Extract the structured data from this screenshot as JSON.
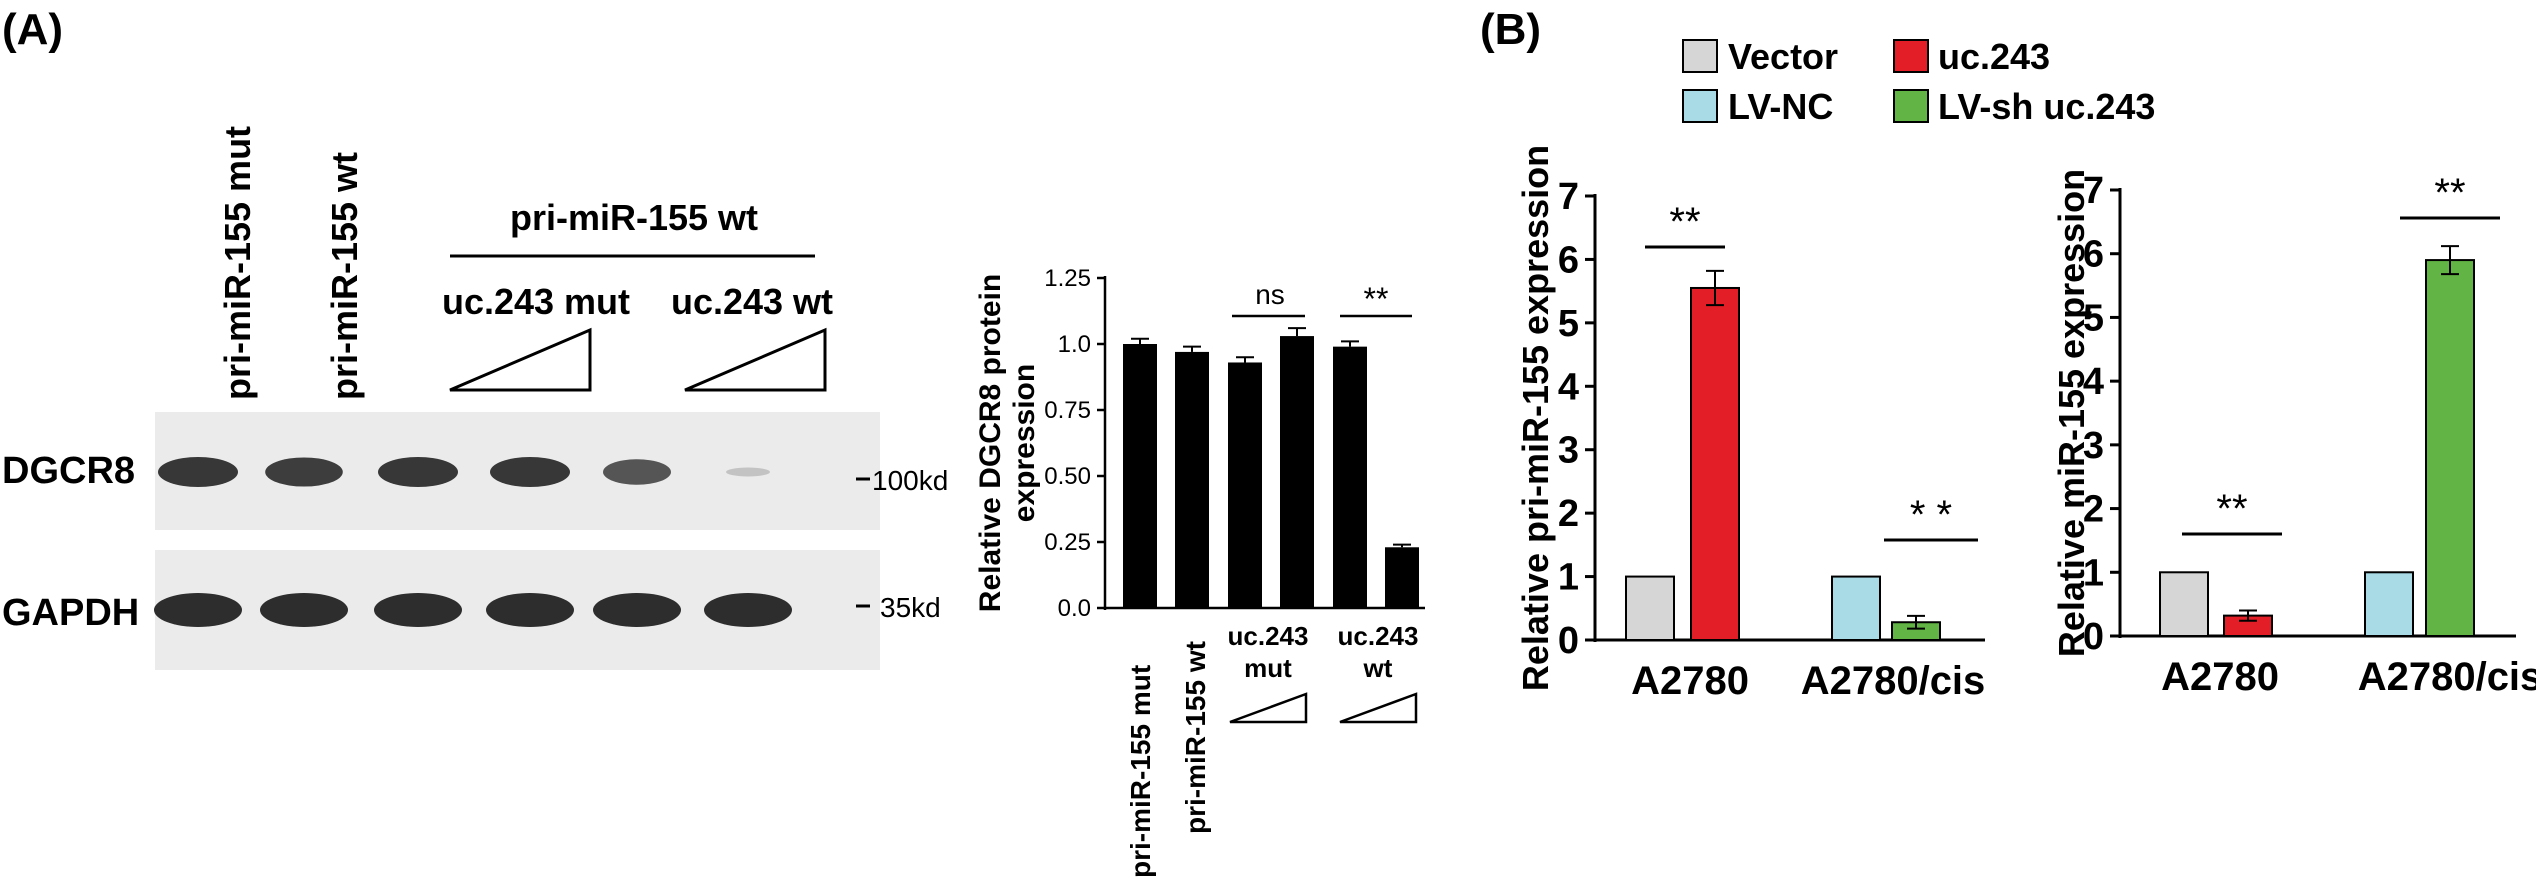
{
  "panel_a": {
    "label": "(A)",
    "blot": {
      "lane_labels": [
        "pri-miR-155 mut",
        "pri-miR-155 wt"
      ],
      "group_label": "pri-miR-155 wt",
      "subgroup_labels": [
        "uc.243 mut",
        "uc.243 wt"
      ],
      "row_labels": [
        "DGCR8",
        "GAPDH"
      ],
      "marker_labels": [
        "100kd",
        "35kd"
      ],
      "dgcr8_band_intensity": [
        1.0,
        0.97,
        1.0,
        1.0,
        0.85,
        0.3
      ],
      "gapdh_band_intensity": [
        1.0,
        1.0,
        1.0,
        1.0,
        1.0,
        1.0
      ]
    }
  },
  "panel_b": {
    "label": "(B)",
    "legend": [
      "Vector",
      "uc.243",
      "LV-NC",
      "LV-sh uc.243"
    ],
    "colors": {
      "Vector": "#d6d6d6",
      "uc.243": "#e41e26",
      "LV-NC": "#a8dbe6",
      "LV-sh uc.243": "#62b545"
    }
  },
  "chart_data": [
    {
      "type": "bar",
      "title": "",
      "ylabel": "Relative DGCR8 protein expression",
      "ylim": [
        0,
        1.25
      ],
      "yticks": [
        "0.0",
        "0.25",
        "0.50",
        "0.75",
        "1.0",
        "1.25"
      ],
      "categories": [
        "pri-miR-155 mut",
        "pri-miR-155 wt",
        "uc.243 mut (low)",
        "uc.243 mut (high)",
        "uc.243 wt (low)",
        "uc.243 wt (high)"
      ],
      "xlabels": [
        "pri-miR-155 mut",
        "pri-miR-155 wt",
        "uc.243\nmut",
        "uc.243\nwt"
      ],
      "values": [
        1.0,
        0.97,
        0.93,
        1.03,
        0.99,
        0.23
      ],
      "errors": [
        0.02,
        0.02,
        0.02,
        0.03,
        0.02,
        0.01
      ],
      "annotations": [
        "ns",
        "**"
      ],
      "color": "#000000"
    },
    {
      "type": "bar",
      "ylabel": "Relative pri-miR-155 expression",
      "ylim": [
        0,
        7
      ],
      "yticks": [
        "0",
        "1",
        "2",
        "3",
        "4",
        "5",
        "6",
        "7"
      ],
      "categories": [
        "A2780",
        "A2780/cis"
      ],
      "series": [
        {
          "name": "Vector",
          "values": [
            1.0,
            null
          ],
          "errors": [
            0,
            null
          ]
        },
        {
          "name": "uc.243",
          "values": [
            5.55,
            null
          ],
          "errors": [
            0.27,
            null
          ]
        },
        {
          "name": "LV-NC",
          "values": [
            null,
            1.0
          ],
          "errors": [
            null,
            0
          ]
        },
        {
          "name": "LV-sh uc.243",
          "values": [
            null,
            0.28
          ],
          "errors": [
            null,
            0.1
          ]
        }
      ],
      "annotations": [
        "**",
        "* *"
      ]
    },
    {
      "type": "bar",
      "ylabel": "Relative miR-155 expression",
      "ylim": [
        0,
        7
      ],
      "yticks": [
        "0",
        "1",
        "2",
        "3",
        "4",
        "5",
        "6",
        "7"
      ],
      "categories": [
        "A2780",
        "A2780/cis"
      ],
      "series": [
        {
          "name": "Vector",
          "values": [
            1.0,
            null
          ],
          "errors": [
            0,
            null
          ]
        },
        {
          "name": "uc.243",
          "values": [
            0.32,
            null
          ],
          "errors": [
            0.08,
            null
          ]
        },
        {
          "name": "LV-NC",
          "values": [
            null,
            1.0
          ],
          "errors": [
            null,
            0
          ]
        },
        {
          "name": "LV-sh uc.243",
          "values": [
            null,
            5.9
          ],
          "errors": [
            null,
            0.22
          ]
        }
      ],
      "annotations": [
        "**",
        "**"
      ]
    }
  ]
}
